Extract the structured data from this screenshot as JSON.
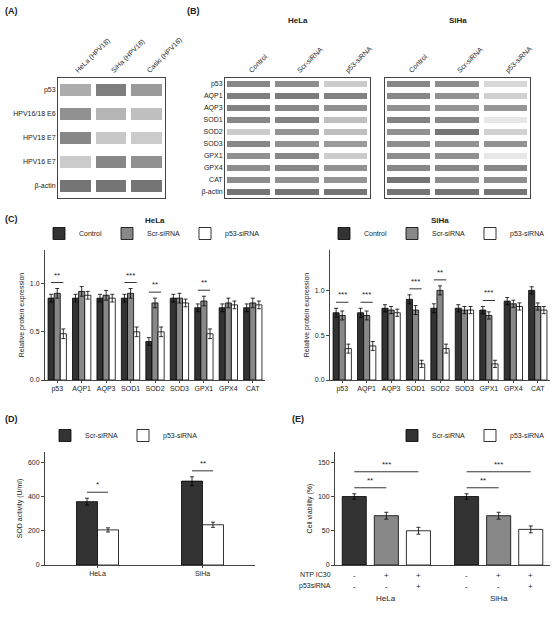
{
  "chart_data": [
    {
      "type": "heatmap",
      "panel": "(A)",
      "rows": [
        "p53",
        "HPV16/18 E6",
        "HPV18 E7",
        "HPV16 E7",
        "β-actin"
      ],
      "columns": [
        "HeLa (HPV18)",
        "SiHa (HPV16)",
        "Caski (HPV16)"
      ],
      "cells": [
        [
          0.45,
          0.7,
          0.55
        ],
        [
          0.6,
          0.4,
          0.35
        ],
        [
          0.65,
          0.3,
          0.28
        ],
        [
          0.28,
          0.65,
          0.6
        ],
        [
          0.75,
          0.75,
          0.75
        ]
      ],
      "zlim": [
        0,
        1
      ]
    },
    {
      "type": "heatmap",
      "panel": "(B)",
      "rows": [
        "p53",
        "AQP1",
        "AQP3",
        "SOD1",
        "SOD2",
        "SOD3",
        "GPX1",
        "GPX4",
        "CAT",
        "β-actin"
      ],
      "columns": [
        "Control",
        "Scr-siRNA",
        "p53-siRNA"
      ],
      "blots": [
        {
          "name": "HeLa",
          "cells": [
            [
              0.65,
              0.62,
              0.28
            ],
            [
              0.7,
              0.72,
              0.68
            ],
            [
              0.68,
              0.65,
              0.6
            ],
            [
              0.65,
              0.68,
              0.35
            ],
            [
              0.28,
              0.58,
              0.35
            ],
            [
              0.65,
              0.6,
              0.55
            ],
            [
              0.6,
              0.65,
              0.28
            ],
            [
              0.62,
              0.65,
              0.6
            ],
            [
              0.62,
              0.6,
              0.58
            ],
            [
              0.75,
              0.75,
              0.75
            ]
          ]
        },
        {
          "name": "SiHa",
          "cells": [
            [
              0.65,
              0.62,
              0.22
            ],
            [
              0.65,
              0.6,
              0.25
            ],
            [
              0.6,
              0.58,
              0.57
            ],
            [
              0.68,
              0.65,
              0.13
            ],
            [
              0.6,
              0.75,
              0.25
            ],
            [
              0.62,
              0.6,
              0.6
            ],
            [
              0.62,
              0.6,
              0.13
            ],
            [
              0.65,
              0.65,
              0.65
            ],
            [
              0.75,
              0.62,
              0.62
            ],
            [
              0.75,
              0.75,
              0.75
            ]
          ]
        }
      ],
      "zlim": [
        0,
        1
      ]
    },
    {
      "type": "bar",
      "panel": "(C)",
      "title": "HeLa",
      "categories": [
        "p53",
        "AQP1",
        "AQP3",
        "SOD1",
        "SOD2",
        "SOD3",
        "GPX1",
        "GPX4",
        "CAT"
      ],
      "series": [
        {
          "name": "Control",
          "color": "#333333",
          "values": [
            0.85,
            0.85,
            0.85,
            0.85,
            0.4,
            0.85,
            0.75,
            0.75,
            0.75
          ],
          "errors": [
            0.04,
            0.04,
            0.04,
            0.04,
            0.04,
            0.04,
            0.04,
            0.04,
            0.04
          ]
        },
        {
          "name": "Scr-siRNA",
          "color": "#888888",
          "values": [
            0.9,
            0.92,
            0.88,
            0.9,
            0.8,
            0.85,
            0.82,
            0.8,
            0.8
          ],
          "errors": [
            0.05,
            0.05,
            0.05,
            0.05,
            0.05,
            0.05,
            0.05,
            0.05,
            0.05
          ]
        },
        {
          "name": "p53-siRNA",
          "color": "#ffffff",
          "values": [
            0.48,
            0.88,
            0.85,
            0.5,
            0.5,
            0.8,
            0.48,
            0.78,
            0.78
          ],
          "errors": [
            0.05,
            0.04,
            0.04,
            0.05,
            0.05,
            0.04,
            0.05,
            0.04,
            0.04
          ]
        }
      ],
      "significance": [
        "**",
        null,
        null,
        "***",
        "**",
        null,
        "**",
        null,
        null
      ],
      "ylabel": "Relative protein expression",
      "ylim": [
        0,
        1.35
      ],
      "yticks": [
        {
          "value": 0,
          "label": "0.0"
        },
        0.5,
        {
          "value": 1.0,
          "label": "1.0"
        }
      ],
      "legend": "upper right",
      "grid": false
    },
    {
      "type": "bar",
      "title": "SiHa",
      "categories": [
        "p53",
        "AQP1",
        "AQP3",
        "SOD1",
        "SOD2",
        "SOD3",
        "GPX1",
        "GPX4",
        "CAT"
      ],
      "series": [
        {
          "name": "Control",
          "color": "#333333",
          "values": [
            0.75,
            0.75,
            0.8,
            0.9,
            0.8,
            0.8,
            0.78,
            0.88,
            1.0
          ],
          "errors": [
            0.05,
            0.05,
            0.04,
            0.05,
            0.05,
            0.04,
            0.04,
            0.04,
            0.04
          ]
        },
        {
          "name": "Scr-siRNA",
          "color": "#888888",
          "values": [
            0.72,
            0.72,
            0.78,
            0.78,
            1.0,
            0.78,
            0.72,
            0.85,
            0.82
          ],
          "errors": [
            0.05,
            0.05,
            0.04,
            0.05,
            0.05,
            0.04,
            0.04,
            0.04,
            0.04
          ]
        },
        {
          "name": "p53-siRNA",
          "color": "#ffffff",
          "values": [
            0.35,
            0.38,
            0.75,
            0.18,
            0.35,
            0.78,
            0.18,
            0.82,
            0.78
          ],
          "errors": [
            0.05,
            0.05,
            0.04,
            0.04,
            0.05,
            0.04,
            0.04,
            0.04,
            0.04
          ]
        }
      ],
      "significance": [
        "***",
        "***",
        null,
        "***",
        "**",
        null,
        "***",
        null,
        null
      ],
      "ylabel": "Relative protein expression",
      "ylim": [
        0,
        1.45
      ],
      "yticks": [
        {
          "value": 0.0,
          "label": "0.0"
        },
        0.5,
        {
          "value": 1.0,
          "label": "1.0"
        }
      ],
      "legend": "upper right",
      "grid": false
    },
    {
      "type": "bar",
      "panel": "(D)",
      "categories": [
        "HeLa",
        "SiHa"
      ],
      "series": [
        {
          "name": "Scr-siRNA",
          "color": "#333333",
          "values": [
            370,
            490
          ],
          "errors": [
            20,
            25
          ]
        },
        {
          "name": "p53-siRNA",
          "color": "#ffffff",
          "values": [
            205,
            235
          ],
          "errors": [
            12,
            15
          ]
        }
      ],
      "significance": [
        "*",
        "**"
      ],
      "ylabel": "SOD activity (U/ml)",
      "ylim": [
        0,
        660
      ],
      "yticks": [
        0,
        200,
        400,
        600
      ],
      "legend": "upper left",
      "grid": false
    },
    {
      "type": "bar",
      "panel": "(E)",
      "categories": [
        null,
        null,
        null,
        null,
        null,
        null
      ],
      "series": [
        {
          "name": "Scr-siRNA",
          "color": "#333333",
          "values": [
            100,
            null,
            null,
            100,
            null,
            null
          ],
          "errors": [
            4,
            null,
            null,
            4,
            null,
            null
          ]
        },
        {
          "color": "#888888",
          "values": [
            null,
            72,
            null,
            null,
            72,
            null
          ],
          "errors": [
            null,
            5,
            null,
            null,
            5,
            null
          ]
        },
        {
          "name": "p53-siRNA",
          "color": "#ffffff",
          "values": [
            null,
            null,
            50,
            null,
            null,
            52
          ],
          "errors": [
            null,
            null,
            5,
            null,
            null,
            5
          ]
        }
      ],
      "brackets": [
        {
          "text": "**",
          "bars": [
            0,
            1
          ]
        },
        {
          "text": "***",
          "bars": [
            0,
            2
          ]
        },
        {
          "text": "**",
          "bars": [
            3,
            4
          ]
        },
        {
          "text": "***",
          "bars": [
            3,
            5
          ]
        }
      ],
      "x_rows": [
        {
          "label": "NTP IC30",
          "values": [
            "-",
            "+",
            "+",
            "-",
            "+",
            "+"
          ]
        },
        {
          "label": "p53siRNA",
          "values": [
            "-",
            "-",
            "+",
            "-",
            "-",
            "+"
          ]
        }
      ],
      "group_labels": [
        "HeLa",
        "SiHa"
      ],
      "ylabel": "Cell viability (%)",
      "ylim": [
        0,
        165
      ],
      "yticks": [
        0,
        50,
        100,
        150
      ],
      "legend": "upper right",
      "grid": false,
      "tick_labels": "y"
    }
  ]
}
